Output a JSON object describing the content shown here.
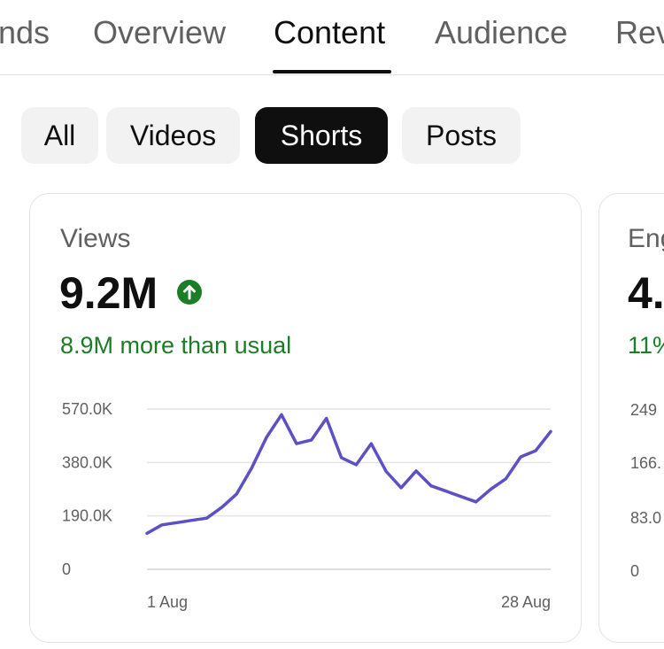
{
  "tabs": [
    {
      "label": "nds",
      "active": false
    },
    {
      "label": "Overview",
      "active": false
    },
    {
      "label": "Content",
      "active": true
    },
    {
      "label": "Audience",
      "active": false
    },
    {
      "label": "Rev",
      "active": false
    }
  ],
  "filters": {
    "options": [
      "All",
      "Videos",
      "Shorts",
      "Posts"
    ],
    "selected": "Shorts"
  },
  "cards": {
    "views": {
      "title": "Views",
      "value": "9.2M",
      "trend_icon": "arrow-up-circle-icon",
      "delta": "8.9M more than usual"
    },
    "engaged": {
      "title": "Eng",
      "value": "4.",
      "delta": "11%",
      "y_ticks": [
        "249",
        "166.",
        "83.0",
        "0"
      ]
    }
  },
  "colors": {
    "accent_line": "#5b50c4",
    "positive": "#1b7d25",
    "selected_chip": "#0f0f0f",
    "chip_bg": "#f2f2f2"
  },
  "chart_data": {
    "type": "line",
    "title": "Views",
    "x_tick_labels": [
      "1 Aug",
      "28 Aug"
    ],
    "y_tick_labels": [
      "570.0K",
      "380.0K",
      "190.0K",
      "0"
    ],
    "ylim": [
      0,
      570000
    ],
    "grid": true,
    "series": [
      {
        "x": [
          "1 Aug",
          "2 Aug",
          "3 Aug",
          "4 Aug",
          "5 Aug",
          "6 Aug",
          "7 Aug",
          "8 Aug",
          "9 Aug",
          "10 Aug",
          "11 Aug",
          "12 Aug",
          "13 Aug",
          "14 Aug",
          "15 Aug",
          "16 Aug",
          "17 Aug",
          "18 Aug",
          "19 Aug",
          "20 Aug",
          "21 Aug",
          "22 Aug",
          "23 Aug",
          "24 Aug",
          "25 Aug",
          "26 Aug",
          "27 Aug",
          "28 Aug"
        ],
        "values": [
          128000,
          158000,
          166000,
          174000,
          182000,
          220000,
          268000,
          360000,
          470000,
          550000,
          447000,
          460000,
          537000,
          397000,
          372000,
          447000,
          348000,
          290000,
          350000,
          297000,
          278000,
          259000,
          240000,
          285000,
          322000,
          400000,
          422000,
          490000
        ]
      }
    ]
  }
}
